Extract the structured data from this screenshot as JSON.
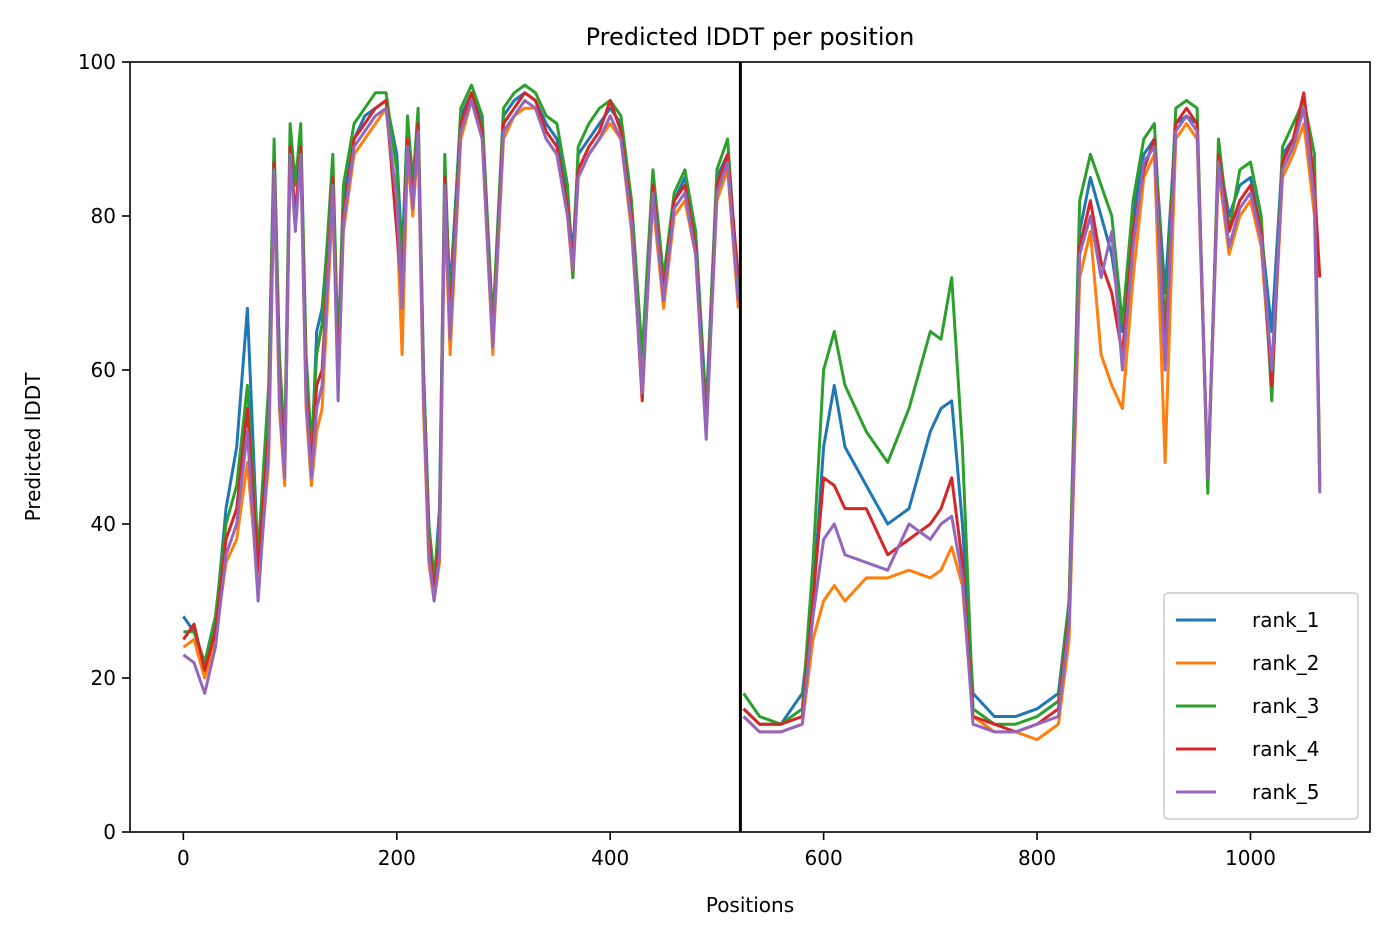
{
  "chart_data": {
    "type": "line",
    "title": "Predicted lDDT per position",
    "xlabel": "Positions",
    "ylabel": "Predicted lDDT",
    "xlim": [
      -50,
      1112
    ],
    "ylim": [
      0,
      100
    ],
    "xticks": [
      "0",
      "200",
      "400",
      "600",
      "800",
      "1000"
    ],
    "yticks": [
      "0",
      "20",
      "40",
      "60",
      "80",
      "100"
    ],
    "grid": false,
    "legend_position": "lower-right",
    "chain_break_x": 522,
    "series_x": [
      0,
      10,
      20,
      30,
      40,
      50,
      60,
      70,
      80,
      85,
      90,
      95,
      100,
      105,
      110,
      115,
      120,
      125,
      130,
      140,
      145,
      150,
      160,
      170,
      180,
      190,
      200,
      205,
      210,
      215,
      220,
      225,
      230,
      235,
      240,
      245,
      250,
      260,
      270,
      280,
      290,
      300,
      310,
      320,
      330,
      340,
      350,
      360,
      365,
      370,
      380,
      390,
      400,
      410,
      420,
      430,
      440,
      450,
      460,
      470,
      480,
      490,
      500,
      510,
      520,
      525,
      540,
      560,
      580,
      590,
      600,
      610,
      620,
      640,
      660,
      680,
      700,
      710,
      720,
      730,
      740,
      760,
      780,
      800,
      820,
      830,
      840,
      850,
      860,
      870,
      880,
      890,
      900,
      910,
      920,
      930,
      940,
      950,
      960,
      970,
      980,
      990,
      1000,
      1010,
      1020,
      1030,
      1040,
      1050,
      1060,
      1065
    ],
    "series": [
      {
        "name": "rank_1",
        "color": "#1f77b4",
        "values": [
          28,
          26,
          22,
          27,
          42,
          50,
          68,
          35,
          55,
          88,
          60,
          48,
          90,
          85,
          90,
          60,
          48,
          65,
          68,
          85,
          60,
          82,
          90,
          93,
          94,
          95,
          88,
          75,
          92,
          85,
          92,
          60,
          40,
          32,
          42,
          85,
          70,
          93,
          96,
          92,
          65,
          93,
          95,
          96,
          95,
          92,
          90,
          82,
          75,
          88,
          90,
          92,
          94,
          92,
          80,
          60,
          85,
          70,
          82,
          85,
          78,
          55,
          85,
          88,
          70,
          16,
          14,
          14,
          18,
          30,
          50,
          58,
          50,
          45,
          40,
          42,
          52,
          55,
          56,
          40,
          18,
          15,
          15,
          16,
          18,
          30,
          78,
          85,
          80,
          75,
          65,
          80,
          88,
          90,
          70,
          92,
          93,
          92,
          45,
          88,
          80,
          84,
          85,
          78,
          65,
          88,
          90,
          94,
          85,
          45
        ]
      },
      {
        "name": "rank_2",
        "color": "#ff7f0e",
        "values": [
          24,
          25,
          20,
          25,
          35,
          38,
          48,
          32,
          48,
          85,
          55,
          45,
          88,
          80,
          88,
          55,
          45,
          52,
          55,
          82,
          58,
          78,
          88,
          90,
          92,
          94,
          80,
          62,
          88,
          80,
          90,
          55,
          35,
          30,
          35,
          82,
          62,
          90,
          95,
          90,
          62,
          90,
          93,
          94,
          94,
          90,
          88,
          80,
          72,
          85,
          88,
          90,
          92,
          90,
          78,
          58,
          82,
          68,
          80,
          82,
          75,
          52,
          82,
          86,
          68,
          15,
          13,
          13,
          14,
          25,
          30,
          32,
          30,
          33,
          33,
          34,
          33,
          34,
          37,
          32,
          15,
          13,
          13,
          12,
          14,
          25,
          72,
          78,
          62,
          58,
          55,
          72,
          85,
          88,
          48,
          90,
          92,
          90,
          45,
          86,
          75,
          80,
          82,
          76,
          58,
          85,
          88,
          92,
          80,
          48
        ]
      },
      {
        "name": "rank_3",
        "color": "#2ca02c",
        "values": [
          26,
          26,
          22,
          28,
          40,
          45,
          58,
          36,
          58,
          90,
          62,
          50,
          92,
          84,
          92,
          62,
          50,
          62,
          66,
          88,
          62,
          84,
          92,
          94,
          96,
          96,
          86,
          72,
          93,
          84,
          94,
          60,
          40,
          33,
          40,
          88,
          68,
          94,
          97,
          93,
          66,
          94,
          96,
          97,
          96,
          93,
          92,
          84,
          72,
          89,
          92,
          94,
          95,
          93,
          82,
          62,
          86,
          72,
          83,
          86,
          78,
          54,
          86,
          90,
          70,
          18,
          15,
          14,
          16,
          35,
          60,
          65,
          58,
          52,
          48,
          55,
          65,
          64,
          72,
          50,
          16,
          14,
          14,
          15,
          17,
          30,
          82,
          88,
          84,
          80,
          66,
          82,
          90,
          92,
          65,
          94,
          95,
          94,
          44,
          90,
          78,
          86,
          87,
          80,
          56,
          89,
          92,
          95,
          88,
          46
        ]
      },
      {
        "name": "rank_4",
        "color": "#d62728",
        "values": [
          25,
          27,
          21,
          26,
          38,
          42,
          55,
          34,
          52,
          87,
          58,
          47,
          89,
          80,
          89,
          58,
          47,
          58,
          60,
          85,
          58,
          80,
          90,
          92,
          94,
          95,
          78,
          70,
          90,
          82,
          92,
          58,
          38,
          31,
          38,
          85,
          66,
          92,
          96,
          91,
          64,
          92,
          94,
          96,
          95,
          91,
          89,
          81,
          74,
          86,
          89,
          91,
          95,
          91,
          80,
          56,
          84,
          70,
          82,
          84,
          76,
          52,
          84,
          88,
          72,
          16,
          14,
          14,
          15,
          30,
          46,
          45,
          42,
          42,
          36,
          38,
          40,
          42,
          46,
          35,
          15,
          14,
          13,
          14,
          16,
          28,
          76,
          82,
          74,
          70,
          62,
          78,
          86,
          90,
          62,
          92,
          94,
          92,
          46,
          88,
          78,
          82,
          84,
          78,
          58,
          87,
          90,
          96,
          84,
          72
        ]
      },
      {
        "name": "rank_5",
        "color": "#9467bd",
        "values": [
          23,
          22,
          18,
          24,
          36,
          40,
          52,
          30,
          50,
          86,
          56,
          46,
          88,
          78,
          88,
          56,
          46,
          55,
          58,
          84,
          56,
          79,
          89,
          91,
          93,
          94,
          82,
          68,
          89,
          81,
          91,
          57,
          36,
          30,
          36,
          84,
          64,
          91,
          95,
          90,
          63,
          91,
          93,
          95,
          94,
          90,
          88,
          80,
          73,
          85,
          88,
          90,
          93,
          90,
          79,
          57,
          83,
          69,
          81,
          83,
          75,
          51,
          83,
          87,
          69,
          15,
          13,
          13,
          14,
          28,
          38,
          40,
          36,
          35,
          34,
          40,
          38,
          40,
          41,
          33,
          14,
          13,
          13,
          14,
          15,
          27,
          75,
          80,
          72,
          78,
          60,
          76,
          87,
          89,
          60,
          91,
          93,
          91,
          46,
          87,
          76,
          81,
          83,
          77,
          60,
          86,
          89,
          94,
          82,
          44
        ]
      }
    ]
  }
}
